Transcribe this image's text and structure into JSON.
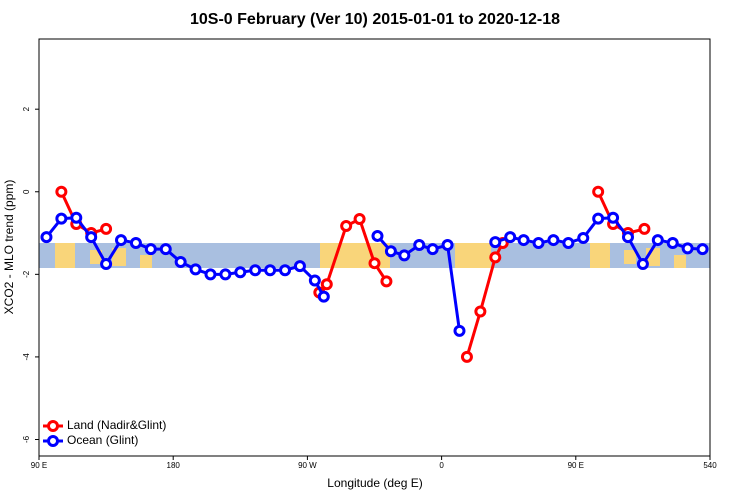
{
  "chart_data": {
    "type": "line",
    "title": "10S-0 February (Ver 10)   2015-01-01 to 2020-12-18",
    "x_label": "Longitude (deg E)",
    "y_label": "XCO2 - MLO trend (ppm)",
    "xlim": [
      90,
      540
    ],
    "xticks": [
      {
        "value": 90,
        "label": "90 E"
      },
      180,
      {
        "value": 270,
        "label": "90 W"
      },
      {
        "value": 360,
        "label": "0"
      },
      {
        "value": 450,
        "label": "90 E"
      },
      540
    ],
    "ylim": [
      -6.4,
      3.7
    ],
    "yticks": [
      -6,
      -4,
      -2,
      0,
      2
    ],
    "legend": "bottom-left",
    "series": [
      {
        "name": "Land (Nadir&Glint)",
        "color": "#ff0000",
        "x": [
          105,
          115,
          125,
          135,
          null,
          278,
          283,
          296,
          305,
          315,
          323,
          null,
          377,
          386,
          396,
          401,
          null,
          465,
          475,
          485,
          496
        ],
        "values": [
          0,
          -0.78,
          -1.0,
          -0.9,
          null,
          -2.44,
          -2.24,
          -0.83,
          -0.66,
          -1.73,
          -2.17,
          null,
          -4.0,
          -2.9,
          -1.59,
          -1.24,
          null,
          0,
          -0.78,
          -1.0,
          -0.9
        ]
      },
      {
        "name": "Ocean (Glint)",
        "color": "#0000ff",
        "x": [
          95,
          105,
          115,
          125,
          135,
          145,
          155,
          165,
          175,
          185,
          195,
          205,
          215,
          225,
          235,
          245,
          255,
          265,
          275,
          281,
          null,
          317,
          326,
          335,
          345,
          354,
          364,
          372,
          null,
          396,
          406,
          415,
          425,
          435,
          445,
          455,
          465,
          475,
          485,
          495,
          505,
          515,
          525,
          535
        ],
        "values": [
          -1.1,
          -0.65,
          -0.63,
          -1.1,
          -1.75,
          -1.17,
          -1.24,
          -1.39,
          -1.39,
          -1.7,
          -1.88,
          -2.0,
          -2.0,
          -1.95,
          -1.9,
          -1.9,
          -1.9,
          -1.8,
          -2.15,
          -2.54,
          null,
          -1.07,
          -1.44,
          -1.54,
          -1.29,
          -1.39,
          -1.29,
          -3.37,
          null,
          -1.22,
          -1.1,
          -1.17,
          -1.24,
          -1.17,
          -1.24,
          -1.12,
          -0.65,
          -0.63,
          -1.1,
          -1.75,
          -1.17,
          -1.24,
          -1.37,
          -1.39
        ]
      }
    ]
  }
}
